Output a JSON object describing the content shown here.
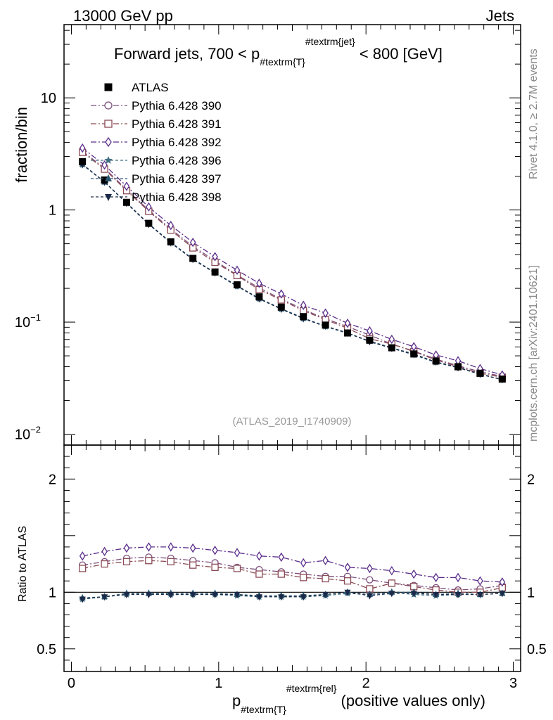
{
  "header": {
    "left": "13000 GeV pp",
    "right": "Jets"
  },
  "side_labels": {
    "rivet": "Rivet 4.1.0, ≥ 2.7M events",
    "mcplots": "mcplots.cern.ch [arXiv:2401.10621]"
  },
  "chart_data": {
    "type": "scatter",
    "title": "Forward jets, 700 < p#textrm{T}#textrm{jet} < 800 [GeV]",
    "title_parts": {
      "pre": "Forward jets, 700 < p",
      "sub": "#textrm{T}",
      "sup": "#textrm{jet}",
      "post": " < 800 [GeV]"
    },
    "analysis_tag": "(ATLAS_2019_I1740909)",
    "xlabel_parts": {
      "pre": "p",
      "sub": "#textrm{T}",
      "sup": "#textrm{rel}",
      "post": " (positive values only)"
    },
    "ylabel_main": "fraction/bin",
    "ylabel_ratio": "Ratio to ATLAS",
    "xlim": [
      -0.05,
      3.05
    ],
    "ylim_main": [
      0.008,
      45
    ],
    "ylog_main": true,
    "ylim_ratio": [
      0.3,
      2.3
    ],
    "x_ticks": [
      0,
      1,
      2,
      3
    ],
    "x_tick_labels": [
      "0",
      "1",
      "2",
      "3"
    ],
    "y_main_ticks": [
      {
        "v": 0.01,
        "base": "10",
        "exp": "−2"
      },
      {
        "v": 0.1,
        "base": "10",
        "exp": "−1"
      },
      {
        "v": 1,
        "base": "1",
        "exp": ""
      },
      {
        "v": 10,
        "base": "10",
        "exp": ""
      }
    ],
    "y_ratio_ticks": [
      {
        "v": 0.5,
        "label": "0.5"
      },
      {
        "v": 1,
        "label": "1"
      },
      {
        "v": 2,
        "label": "2"
      }
    ],
    "x": [
      0.075,
      0.225,
      0.375,
      0.525,
      0.675,
      0.825,
      0.975,
      1.125,
      1.275,
      1.425,
      1.575,
      1.725,
      1.875,
      2.025,
      2.175,
      2.325,
      2.475,
      2.625,
      2.775,
      2.925
    ],
    "data": {
      "name": "ATLAS",
      "values": [
        2.7,
        1.85,
        1.17,
        0.76,
        0.52,
        0.37,
        0.28,
        0.215,
        0.168,
        0.136,
        0.112,
        0.094,
        0.08,
        0.069,
        0.059,
        0.052,
        0.045,
        0.04,
        0.035,
        0.031
      ],
      "color": "#000000"
    },
    "series": [
      {
        "name": "Pythia 6.428 390",
        "marker": "circle",
        "color": "#7b4d7a",
        "dash": "8,3,2,3",
        "ratio": [
          1.24,
          1.27,
          1.3,
          1.31,
          1.3,
          1.28,
          1.26,
          1.22,
          1.2,
          1.18,
          1.16,
          1.14,
          1.14,
          1.11,
          1.08,
          1.06,
          1.04,
          1.02,
          1.03,
          1.06
        ]
      },
      {
        "name": "Pythia 6.428 391",
        "marker": "square",
        "color": "#8a4a55",
        "dash": "8,3,2,3",
        "ratio": [
          1.21,
          1.25,
          1.27,
          1.28,
          1.27,
          1.24,
          1.22,
          1.21,
          1.16,
          1.16,
          1.13,
          1.12,
          1.1,
          1.03,
          1.08,
          1.05,
          1.02,
          1.0,
          1.0,
          1.04
        ]
      },
      {
        "name": "Pythia 6.428 392",
        "marker": "diamond",
        "color": "#5a2d8a",
        "dash": "8,3,2,3",
        "ratio": [
          1.32,
          1.36,
          1.39,
          1.4,
          1.4,
          1.39,
          1.37,
          1.35,
          1.32,
          1.31,
          1.26,
          1.28,
          1.22,
          1.21,
          1.19,
          1.16,
          1.13,
          1.13,
          1.1,
          1.09
        ]
      },
      {
        "name": "Pythia 6.428 396",
        "marker": "star",
        "color": "#3f6f80",
        "dash": "4,3",
        "ratio": [
          0.94,
          0.96,
          0.98,
          0.99,
          0.98,
          0.98,
          0.98,
          0.97,
          0.96,
          0.96,
          0.96,
          0.97,
          0.99,
          0.98,
          1.0,
          0.98,
          0.97,
          0.98,
          0.98,
          0.99
        ]
      },
      {
        "name": "Pythia 6.428 397",
        "marker": "triangle-up",
        "color": "#2a5570",
        "dash": "4,3",
        "ratio": [
          0.95,
          0.96,
          0.99,
          0.99,
          0.99,
          0.99,
          0.99,
          0.98,
          0.97,
          0.97,
          0.97,
          0.98,
          1.0,
          0.98,
          1.0,
          1.0,
          0.98,
          0.99,
          0.98,
          0.99
        ]
      },
      {
        "name": "Pythia 6.428 398",
        "marker": "triangle-down",
        "color": "#1b2a48",
        "dash": "4,3",
        "ratio": [
          0.94,
          0.96,
          0.98,
          0.98,
          0.98,
          0.98,
          0.98,
          0.98,
          0.96,
          0.96,
          0.96,
          0.98,
          1.0,
          0.97,
          0.99,
          0.99,
          0.98,
          0.98,
          0.98,
          0.99
        ]
      }
    ]
  }
}
